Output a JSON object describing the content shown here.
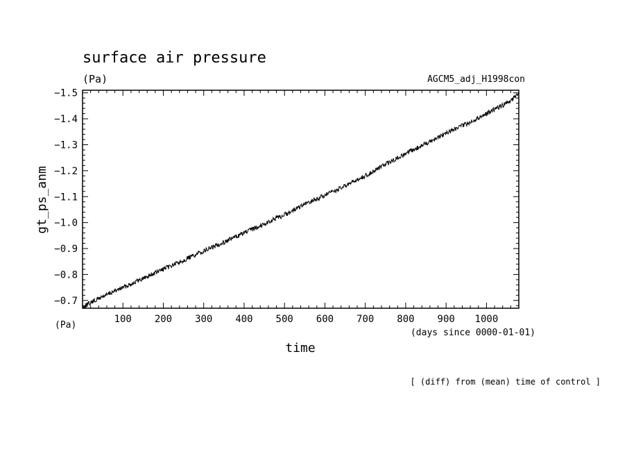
{
  "chart_data": {
    "type": "line",
    "title": "surface air pressure",
    "units": "(Pa)",
    "experiment": "AGCM5_adj_H1998con",
    "ylabel": "gt_ps_anm",
    "xlabel": "time",
    "x_units": "(days since 0000-01-01)",
    "y_units_corner": "(Pa)",
    "footnote": "[ (diff) from (mean) time of control ]",
    "xlim": [
      0,
      1080
    ],
    "ylim": [
      -0.67,
      -1.51
    ],
    "y_inverted": true,
    "x_ticks": [
      100,
      200,
      300,
      400,
      500,
      600,
      700,
      800,
      900,
      1000
    ],
    "y_ticks": [
      -0.7,
      -0.8,
      -0.9,
      -1.0,
      -1.1,
      -1.2,
      -1.3,
      -1.4,
      -1.5
    ],
    "x_tick_labels": [
      "100",
      "200",
      "300",
      "400",
      "500",
      "600",
      "700",
      "800",
      "900",
      "1000"
    ],
    "y_tick_labels": [
      "-0.7",
      "-0.8",
      "-0.9",
      "-1.0",
      "-1.1",
      "-1.2",
      "-1.3",
      "-1.4",
      "-1.5"
    ],
    "series": [
      {
        "x": [
          0,
          50,
          100,
          150,
          200,
          250,
          300,
          350,
          400,
          450,
          500,
          550,
          600,
          650,
          700,
          750,
          800,
          850,
          900,
          950,
          1000,
          1050,
          1080
        ],
        "values": [
          -0.675,
          -0.715,
          -0.75,
          -0.785,
          -0.82,
          -0.855,
          -0.89,
          -0.925,
          -0.96,
          -0.995,
          -1.03,
          -1.07,
          -1.105,
          -1.14,
          -1.18,
          -1.225,
          -1.265,
          -1.305,
          -1.345,
          -1.38,
          -1.42,
          -1.46,
          -1.495
        ]
      }
    ]
  }
}
